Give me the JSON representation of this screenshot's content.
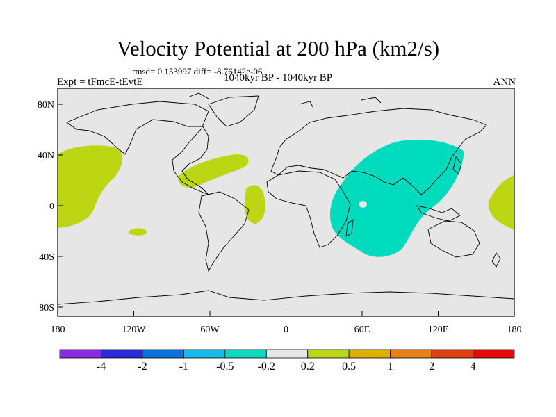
{
  "header": {
    "title": "Velocity Potential at 200 hPa (km2/s)",
    "stats": "rmsd= 0.153997 diff= -8.76142e-06",
    "experiment": "Expt = tFmcE-tEvtE",
    "period": "1040kyr BP - 1040kyr BP",
    "season": "ANN"
  },
  "axes": {
    "y_labels": [
      "80N",
      "40N",
      "0",
      "40S",
      "80S"
    ],
    "x_labels": [
      "180",
      "120W",
      "60W",
      "0",
      "60E",
      "120E",
      "180"
    ]
  },
  "colorbar": {
    "labels": [
      "-4",
      "-2",
      "-1",
      "-0.5",
      "-0.2",
      "0.2",
      "0.5",
      "1",
      "2",
      "4"
    ],
    "colors": [
      "#8a2be2",
      "#2a2ad8",
      "#0a74da",
      "#16b8e8",
      "#10d8c0",
      "#e6e6e6",
      "#bcd614",
      "#e0b000",
      "#e88018",
      "#e04010",
      "#e80a0a"
    ]
  },
  "colors": {
    "background": "#e6e6e6",
    "positive": "#bcd614",
    "negative": "#00dbbe",
    "coast": "#000000"
  }
}
